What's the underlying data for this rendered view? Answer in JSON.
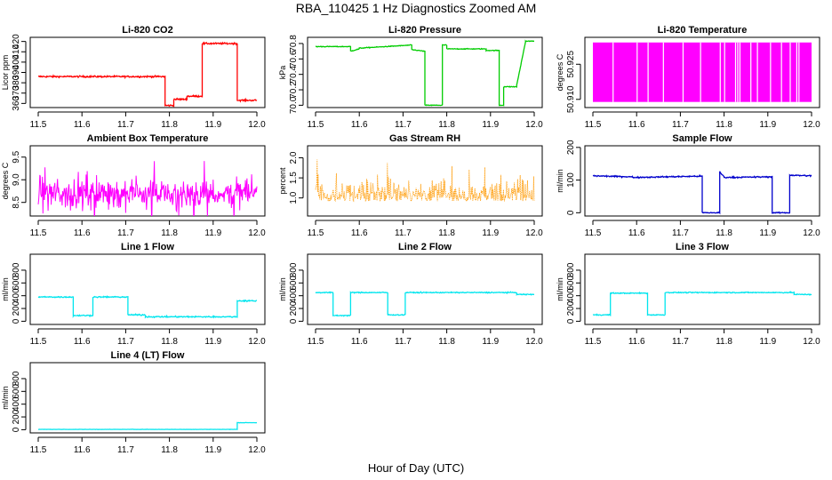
{
  "title": "RBA_110425  1 Hz Diagnostics Zoomed AM",
  "xlabel": "Hour of Day (UTC)",
  "chart_data": [
    {
      "type": "line",
      "title": "Li-820 CO2",
      "ylabel": "Licor ppm",
      "color": "#ff0000",
      "xlim": [
        11.5,
        12.0
      ],
      "ylim": [
        356,
        424
      ],
      "x_ticks": [
        "11.5",
        "11.6",
        "11.7",
        "11.8",
        "11.9",
        "12.0"
      ],
      "y_ticks": [
        "360",
        "370",
        "380",
        "390",
        "400",
        "410",
        "420"
      ],
      "series": [
        {
          "x": [
            11.5,
            11.79,
            11.79,
            11.81,
            11.81,
            11.84,
            11.84,
            11.875,
            11.875,
            11.955,
            11.955,
            12.0
          ],
          "values": [
            386,
            386,
            358,
            358,
            364,
            364,
            367,
            367,
            418,
            418,
            363,
            363
          ],
          "noise": 0.8
        }
      ]
    },
    {
      "type": "line",
      "title": "Li-820 Pressure",
      "ylabel": "kPa",
      "color": "#00cc00",
      "xlim": [
        11.5,
        12.0
      ],
      "ylim": [
        69.97,
        70.88
      ],
      "x_ticks": [
        "11.5",
        "11.6",
        "11.7",
        "11.8",
        "11.9",
        "12.0"
      ],
      "y_ticks": [
        "70.0",
        "70.2",
        "70.4",
        "70.6",
        "70.8"
      ],
      "series": [
        {
          "x": [
            11.5,
            11.58,
            11.58,
            11.6,
            11.6,
            11.72,
            11.72,
            11.75,
            11.75,
            11.79,
            11.79,
            11.8,
            11.8,
            11.89,
            11.89,
            11.92,
            11.92,
            11.93,
            11.93,
            11.96,
            11.96,
            11.98,
            11.98,
            12.0
          ],
          "values": [
            70.76,
            70.76,
            70.7,
            70.73,
            70.74,
            70.78,
            70.72,
            70.7,
            70.0,
            70.0,
            70.78,
            70.78,
            70.73,
            70.73,
            70.71,
            70.71,
            70.0,
            70.0,
            70.24,
            70.24,
            70.26,
            70.82,
            70.83,
            70.83
          ],
          "noise": 0.005
        }
      ]
    },
    {
      "type": "line",
      "title": "Li-820 Temperature",
      "ylabel": "degrees C",
      "color": "#ff00ff",
      "xlim": [
        11.5,
        12.0
      ],
      "ylim": [
        50.9065,
        50.9365
      ],
      "x_ticks": [
        "11.5",
        "11.6",
        "11.7",
        "11.8",
        "11.9",
        "12.0"
      ],
      "y_ticks": [
        "50.910",
        "50.925"
      ],
      "series": [
        {
          "x": [
            11.5,
            12.0
          ],
          "values": [
            50.9089,
            50.9343
          ],
          "noise": 0
        }
      ]
    },
    {
      "type": "line",
      "title": "Ambient Box Temperature",
      "ylabel": "degrees C",
      "color": "#ff00ff",
      "xlim": [
        11.5,
        12.0
      ],
      "ylim": [
        8.2,
        9.75
      ],
      "x_ticks": [
        "11.5",
        "11.6",
        "11.7",
        "11.8",
        "11.9",
        "12.0"
      ],
      "y_ticks": [
        "8.5",
        "9.0",
        "9.5"
      ],
      "series": [
        {
          "x": [
            11.5,
            12.0
          ],
          "values": [
            8.7,
            8.7
          ],
          "noise": 0.3
        }
      ]
    },
    {
      "type": "scatter",
      "title": "Gas Stream RH",
      "ylabel": "percent",
      "color": "#ff9900",
      "xlim": [
        11.5,
        12.0
      ],
      "ylim": [
        0.55,
        2.3
      ],
      "x_ticks": [
        "11.5",
        "11.6",
        "11.7",
        "11.8",
        "11.9",
        "12.0"
      ],
      "y_ticks": [
        "1.0",
        "1.5",
        "2.0"
      ],
      "series": [
        {
          "x": [
            11.5,
            12.0
          ],
          "values": [
            1.1,
            1.1
          ],
          "noise": 0.45
        }
      ]
    },
    {
      "type": "line",
      "title": "Sample Flow",
      "ylabel": "ml/min",
      "color": "#0000cc",
      "xlim": [
        11.5,
        12.0
      ],
      "ylim": [
        -10,
        205
      ],
      "x_ticks": [
        "11.5",
        "11.6",
        "11.7",
        "11.8",
        "11.9",
        "12.0"
      ],
      "y_ticks": [
        "0",
        "100",
        "200"
      ],
      "series": [
        {
          "x": [
            11.5,
            11.59,
            11.59,
            11.75,
            11.75,
            11.79,
            11.79,
            11.8,
            11.8,
            11.91,
            11.91,
            11.95,
            11.95,
            12.0
          ],
          "values": [
            113,
            110,
            108,
            112,
            0,
            0,
            125,
            110,
            108,
            110,
            0,
            0,
            115,
            113
          ],
          "noise": 2
        }
      ]
    },
    {
      "type": "line",
      "title": "Line 1 Flow",
      "ylabel": "ml/min",
      "color": "#00e5ee",
      "xlim": [
        11.5,
        12.0
      ],
      "ylim": [
        -50,
        1050
      ],
      "x_ticks": [
        "11.5",
        "11.6",
        "11.7",
        "11.8",
        "11.9",
        "12.0"
      ],
      "y_ticks": [
        "0",
        "200",
        "400",
        "600",
        "800"
      ],
      "series": [
        {
          "x": [
            11.5,
            11.58,
            11.58,
            11.625,
            11.625,
            11.705,
            11.705,
            11.745,
            11.745,
            11.955,
            11.955,
            12.0
          ],
          "values": [
            380,
            380,
            90,
            90,
            380,
            380,
            100,
            100,
            70,
            70,
            320,
            320
          ],
          "noise": 10
        }
      ]
    },
    {
      "type": "line",
      "title": "Line 2 Flow",
      "ylabel": "ml/min",
      "color": "#00e5ee",
      "xlim": [
        11.5,
        12.0
      ],
      "ylim": [
        -50,
        1050
      ],
      "x_ticks": [
        "11.5",
        "11.6",
        "11.7",
        "11.8",
        "11.9",
        "12.0"
      ],
      "y_ticks": [
        "0",
        "200",
        "400",
        "600",
        "800"
      ],
      "series": [
        {
          "x": [
            11.5,
            11.54,
            11.54,
            11.58,
            11.58,
            11.665,
            11.665,
            11.705,
            11.705,
            11.96,
            11.96,
            12.0
          ],
          "values": [
            450,
            450,
            90,
            90,
            450,
            450,
            100,
            100,
            450,
            450,
            420,
            420
          ],
          "noise": 8
        }
      ]
    },
    {
      "type": "line",
      "title": "Line 3 Flow",
      "ylabel": "ml/min",
      "color": "#00e5ee",
      "xlim": [
        11.5,
        12.0
      ],
      "ylim": [
        -50,
        1050
      ],
      "x_ticks": [
        "11.5",
        "11.6",
        "11.7",
        "11.8",
        "11.9",
        "12.0"
      ],
      "y_ticks": [
        "0",
        "200",
        "400",
        "600",
        "800"
      ],
      "series": [
        {
          "x": [
            11.5,
            11.54,
            11.54,
            11.625,
            11.625,
            11.665,
            11.665,
            11.96,
            11.96,
            12.0
          ],
          "values": [
            100,
            100,
            440,
            440,
            100,
            100,
            450,
            450,
            420,
            420
          ],
          "noise": 8
        }
      ]
    },
    {
      "type": "line",
      "title": "Line 4 (LT) Flow",
      "ylabel": "ml/min",
      "color": "#00e5ee",
      "xlim": [
        11.5,
        12.0
      ],
      "ylim": [
        -50,
        1050
      ],
      "x_ticks": [
        "11.5",
        "11.6",
        "11.7",
        "11.8",
        "11.9",
        "12.0"
      ],
      "y_ticks": [
        "0",
        "200",
        "400",
        "600",
        "800"
      ],
      "series": [
        {
          "x": [
            11.5,
            11.955,
            11.955,
            12.0
          ],
          "values": [
            5,
            5,
            110,
            110
          ],
          "noise": 2
        }
      ]
    }
  ]
}
